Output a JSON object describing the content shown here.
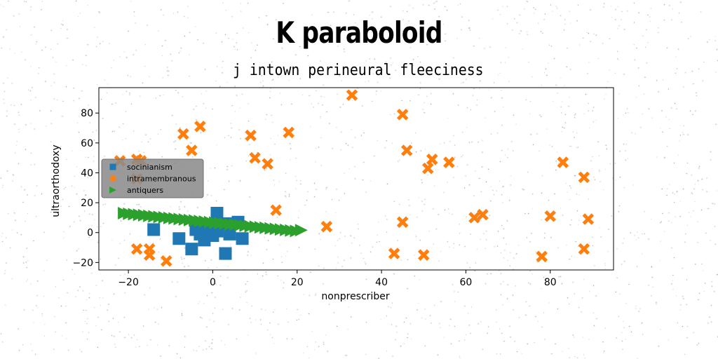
{
  "chart_data": {
    "type": "scatter",
    "title": "K paraboloid",
    "subtitle": "j intown perineural fleeciness",
    "xlabel": "nonprescriber",
    "ylabel": "ultraorthodoxy",
    "xlim": [
      -27,
      95
    ],
    "ylim": [
      -25,
      97
    ],
    "xticks": [
      -20,
      0,
      20,
      40,
      60,
      80
    ],
    "yticks": [
      -20,
      0,
      20,
      40,
      60,
      80
    ],
    "grid": false,
    "legend_position": "center-left",
    "series": [
      {
        "name": "socinianism",
        "marker": "square",
        "color": "#1f77b4",
        "points": [
          [
            -14,
            2
          ],
          [
            -4,
            2
          ],
          [
            -2,
            4
          ],
          [
            1,
            13
          ],
          [
            3,
            6
          ],
          [
            6,
            7
          ],
          [
            -8,
            -4
          ],
          [
            -5,
            -11
          ],
          [
            -2,
            -5
          ],
          [
            0,
            -2
          ],
          [
            4,
            -1
          ],
          [
            7,
            -4
          ],
          [
            3,
            -14
          ],
          [
            -3,
            -1
          ],
          [
            1,
            1
          ]
        ]
      },
      {
        "name": "intramembranous",
        "marker": "x",
        "color": "#ff7f0e",
        "points": [
          [
            33,
            92
          ],
          [
            45,
            79
          ],
          [
            -3,
            71
          ],
          [
            -7,
            66
          ],
          [
            9,
            65
          ],
          [
            18,
            67
          ],
          [
            -5,
            55
          ],
          [
            10,
            50
          ],
          [
            13,
            46
          ],
          [
            46,
            55
          ],
          [
            52,
            49
          ],
          [
            51,
            43
          ],
          [
            56,
            47
          ],
          [
            -22,
            48
          ],
          [
            -18,
            49
          ],
          [
            -17,
            48
          ],
          [
            -18,
            36
          ],
          [
            83,
            47
          ],
          [
            88,
            37
          ],
          [
            15,
            15
          ],
          [
            27,
            4
          ],
          [
            45,
            7
          ],
          [
            62,
            10
          ],
          [
            64,
            12
          ],
          [
            80,
            11
          ],
          [
            89,
            9
          ],
          [
            -18,
            -11
          ],
          [
            -15,
            -11
          ],
          [
            -15,
            -15
          ],
          [
            -11,
            -19
          ],
          [
            43,
            -14
          ],
          [
            50,
            -15
          ],
          [
            78,
            -16
          ],
          [
            88,
            -11
          ]
        ]
      },
      {
        "name": "antiquers",
        "marker": "triangle-right",
        "color": "#2ca02c",
        "points": [
          [
            -21,
            13
          ],
          [
            -19.8,
            12.6
          ],
          [
            -18.6,
            12.3
          ],
          [
            -17.4,
            11.9
          ],
          [
            -16.2,
            11.6
          ],
          [
            -15,
            11.2
          ],
          [
            -13.8,
            10.9
          ],
          [
            -12.6,
            10.5
          ],
          [
            -11.4,
            10.2
          ],
          [
            -10.2,
            9.8
          ],
          [
            -9,
            9.5
          ],
          [
            -7.8,
            9.1
          ],
          [
            -6.6,
            8.8
          ],
          [
            -5.4,
            8.4
          ],
          [
            -4.2,
            8.1
          ],
          [
            -3,
            7.7
          ],
          [
            -1.8,
            7.4
          ],
          [
            -0.6,
            7
          ],
          [
            0.6,
            6.7
          ],
          [
            1.8,
            6.3
          ],
          [
            3,
            6
          ],
          [
            4.2,
            5.6
          ],
          [
            5.4,
            5.3
          ],
          [
            6.6,
            4.9
          ],
          [
            7.8,
            4.6
          ],
          [
            9,
            4.2
          ],
          [
            10.2,
            3.9
          ],
          [
            11.4,
            3.5
          ],
          [
            12.6,
            3.2
          ],
          [
            13.8,
            2.8
          ],
          [
            15,
            2.5
          ],
          [
            16.2,
            2.1
          ],
          [
            17.4,
            1.8
          ],
          [
            18.6,
            1.4
          ],
          [
            19.8,
            1.1
          ],
          [
            21,
            1.6
          ]
        ]
      }
    ]
  }
}
